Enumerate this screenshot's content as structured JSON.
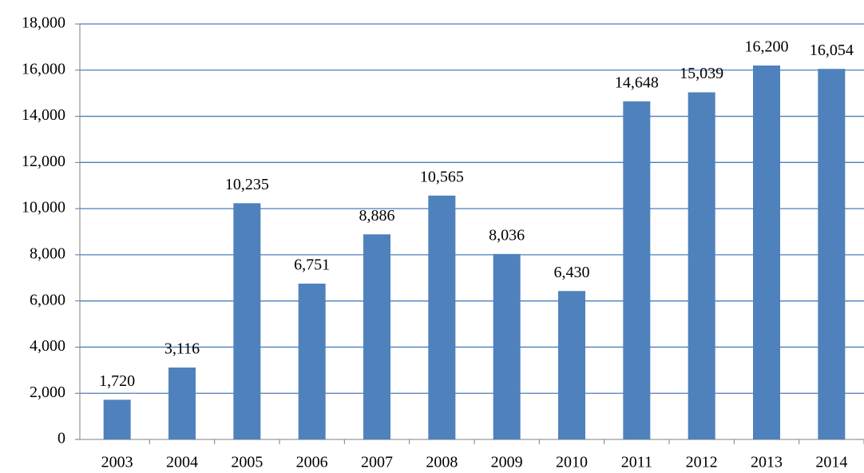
{
  "chart_data": {
    "type": "bar",
    "categories": [
      "2003",
      "2004",
      "2005",
      "2006",
      "2007",
      "2008",
      "2009",
      "2010",
      "2011",
      "2012",
      "2013",
      "2014"
    ],
    "values": [
      1720,
      3116,
      10235,
      6751,
      8886,
      10565,
      8036,
      6430,
      14648,
      15039,
      16200,
      16054
    ],
    "value_labels": [
      "1,720",
      "3,116",
      "10,235",
      "6,751",
      "8,886",
      "10,565",
      "8,036",
      "6,430",
      "14,648",
      "15,039",
      "16,200",
      "16,054"
    ],
    "color": "#4f81bd",
    "ylim": [
      0,
      18000
    ],
    "yticks": [
      0,
      {
        "value": 2000,
        "label": "2,000"
      },
      {
        "value": 4000,
        "label": "4,000"
      },
      {
        "value": 6000,
        "label": "6,000"
      },
      {
        "value": 8000,
        "label": "8,000"
      },
      {
        "value": 10000,
        "label": "10,000"
      },
      {
        "value": 12000,
        "label": "12,000"
      },
      {
        "value": 14000,
        "label": "14,000"
      },
      {
        "value": 16000,
        "label": "16,000"
      },
      {
        "value": 18000,
        "label": "18,000"
      }
    ],
    "grid": true
  }
}
